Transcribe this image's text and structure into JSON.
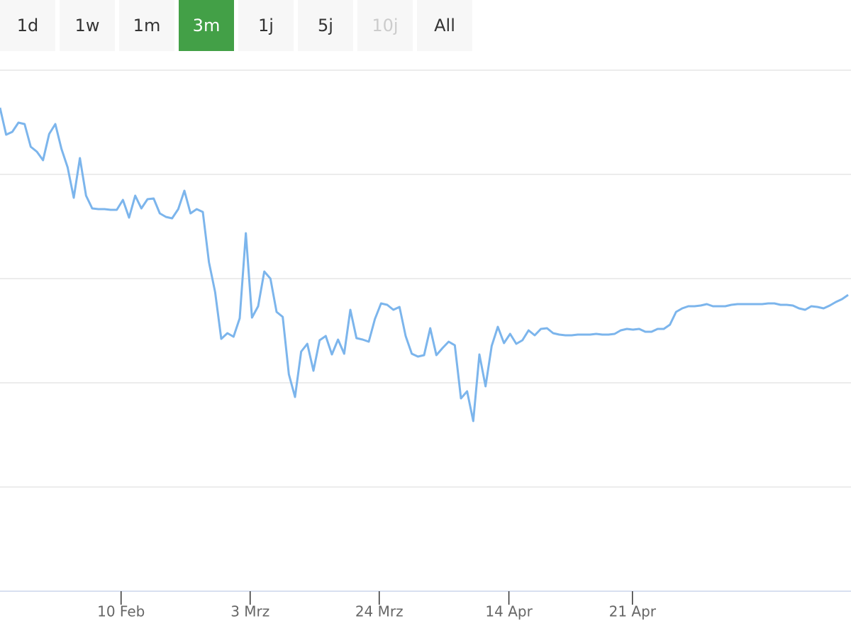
{
  "range_selector": {
    "buttons": [
      "1d",
      "1w",
      "1m",
      "3m",
      "1j",
      "5j",
      "10j",
      "All"
    ],
    "selected_index": 3,
    "disabled_index": 6,
    "selected_color": "#43a047"
  },
  "chart_data": {
    "type": "line",
    "color": "#7cb5ec",
    "grid": true,
    "ytick_labels": false,
    "values": [
      682,
      644,
      648,
      661,
      659,
      627,
      620,
      608,
      645,
      659,
      624,
      598,
      555,
      611,
      558,
      540,
      539,
      539,
      538,
      538,
      552,
      527,
      558,
      540,
      553,
      554,
      533,
      528,
      526,
      539,
      565,
      533,
      539,
      535,
      464,
      422,
      356,
      364,
      359,
      385,
      505,
      386,
      402,
      451,
      441,
      394,
      387,
      306,
      274,
      338,
      349,
      311,
      354,
      360,
      334,
      355,
      335,
      397,
      357,
      355,
      352,
      384,
      406,
      404,
      397,
      401,
      360,
      335,
      331,
      333,
      371,
      333,
      343,
      352,
      347,
      272,
      282,
      240,
      334,
      289,
      346,
      373,
      350,
      363,
      349,
      354,
      368,
      361,
      370,
      371,
      364,
      362,
      361,
      361,
      362,
      362,
      362,
      363,
      362,
      362,
      363,
      368,
      370,
      369,
      370,
      366,
      366,
      370,
      370,
      376,
      394,
      399,
      402,
      402,
      403,
      405,
      402,
      402,
      402,
      404,
      405,
      405,
      405,
      405,
      405,
      406,
      406,
      404,
      404,
      403,
      399,
      397,
      402,
      401,
      399,
      403,
      408,
      412,
      418
    ],
    "xlim": [
      0,
      138
    ],
    "xticks": [
      {
        "value": 19.7,
        "label": "10 Feb"
      },
      {
        "value": 40.7,
        "label": "3 Mrz"
      },
      {
        "value": 61.7,
        "label": "24 Mrz"
      },
      {
        "value": 82.8,
        "label": "14 Apr"
      },
      {
        "value": 102.9,
        "label": "21 Apr"
      }
    ],
    "ylim": [
      0,
      735
    ],
    "yticks": [
      0,
      147,
      294,
      441,
      588,
      735
    ]
  }
}
